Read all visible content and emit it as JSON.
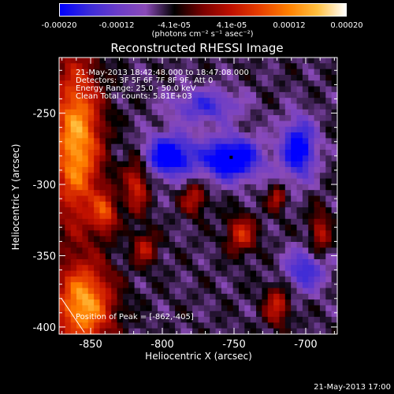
{
  "colorbar": {
    "ticks": [
      "-0.00020",
      "-0.00012",
      "-4.1e-05",
      "4.1e-05",
      "0.00012",
      "0.00020"
    ],
    "units": "(photons cm⁻² s⁻¹ asec⁻²)",
    "range": [
      -0.0002,
      0.0002
    ],
    "colors": [
      "#0000ff",
      "#3a2ad8",
      "#6a3cc8",
      "#8a4ab8",
      "#000000",
      "#7a0000",
      "#c01000",
      "#e84000",
      "#ff8000",
      "#ffc040",
      "#ffffff"
    ]
  },
  "chart_data": {
    "type": "heatmap",
    "title": "Reconstructed RHESSI Image",
    "xlabel": "Heliocentric X (arcsec)",
    "ylabel": "Heliocentric Y (arcsec)",
    "xlim": [
      -872,
      -678
    ],
    "ylim": [
      -405,
      -211
    ],
    "xticks": [
      -850,
      -800,
      -750,
      -700
    ],
    "yticks": [
      -250,
      -300,
      -350,
      -400
    ],
    "grid": false,
    "info_lines": [
      "21-May-2013 18:42:48.000 to 18:47:08.000",
      "Detectors: 3F 5F 6F 7F 8F 9F, Att 0",
      "Energy Range: 25.0 - 50.0 keV",
      "Clean      Total counts: 5.81E+03"
    ],
    "peak_label": "Position of Peak = [-862,-405]",
    "peak": [
      -862,
      -405
    ],
    "marked_point": [
      -752,
      -281
    ],
    "features": [
      {
        "kind": "bright",
        "x": -860,
        "y": -270,
        "sx": 12,
        "sy": 40,
        "amp": 1.0
      },
      {
        "kind": "bright",
        "x": -855,
        "y": -385,
        "sx": 14,
        "sy": 20,
        "amp": 1.0
      },
      {
        "kind": "bright",
        "x": -840,
        "y": -320,
        "sx": 6,
        "sy": 10,
        "amp": 0.6
      },
      {
        "kind": "bright",
        "x": -818,
        "y": -300,
        "sx": 6,
        "sy": 14,
        "amp": 0.55
      },
      {
        "kind": "bright",
        "x": -812,
        "y": -345,
        "sx": 6,
        "sy": 8,
        "amp": 0.45
      },
      {
        "kind": "bright",
        "x": -778,
        "y": -310,
        "sx": 6,
        "sy": 8,
        "amp": 0.45
      },
      {
        "kind": "bright",
        "x": -745,
        "y": -335,
        "sx": 7,
        "sy": 9,
        "amp": 0.55
      },
      {
        "kind": "bright",
        "x": -720,
        "y": -310,
        "sx": 4,
        "sy": 6,
        "amp": 0.45
      },
      {
        "kind": "bright",
        "x": -720,
        "y": -385,
        "sx": 6,
        "sy": 10,
        "amp": 0.5
      },
      {
        "kind": "bright",
        "x": -690,
        "y": -335,
        "sx": 5,
        "sy": 12,
        "amp": 0.45
      },
      {
        "kind": "dim",
        "x": -795,
        "y": -280,
        "sx": 12,
        "sy": 10,
        "amp": -0.9
      },
      {
        "kind": "dim",
        "x": -752,
        "y": -282,
        "sx": 14,
        "sy": 10,
        "amp": -1.0
      },
      {
        "kind": "dim",
        "x": -705,
        "y": -275,
        "sx": 8,
        "sy": 14,
        "amp": -0.85
      },
      {
        "kind": "dim",
        "x": -770,
        "y": -245,
        "sx": 16,
        "sy": 8,
        "amp": -0.5
      },
      {
        "kind": "dim",
        "x": -700,
        "y": -360,
        "sx": 10,
        "sy": 10,
        "amp": -0.55
      }
    ]
  },
  "timestamp": "21-May-2013 17:00"
}
